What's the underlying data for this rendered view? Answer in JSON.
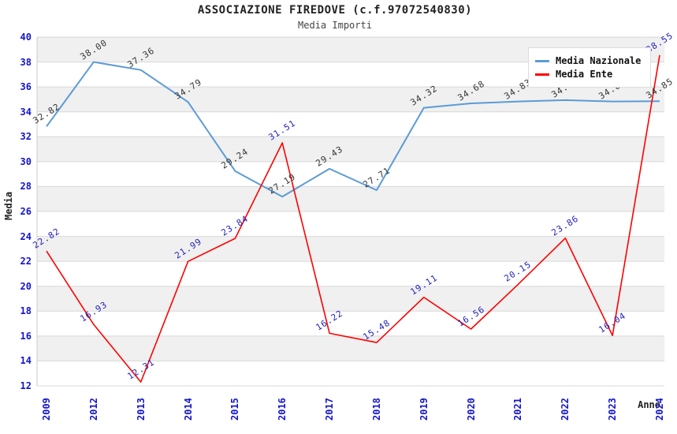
{
  "header": {
    "title": "ASSOCIAZIONE FIREDOVE (c.f.97072540830)",
    "subtitle": "Media Importi"
  },
  "chart_data": {
    "type": "line",
    "title": "ASSOCIAZIONE FIREDOVE (c.f.97072540830)",
    "subtitle": "Media Importi",
    "xlabel": "Anno",
    "ylabel": "Media",
    "categories": [
      "2009",
      "2012",
      "2013",
      "2014",
      "2015",
      "2016",
      "2017",
      "2018",
      "2019",
      "2020",
      "2021",
      "2022",
      "2023",
      "2024"
    ],
    "series": [
      {
        "name": "Media Nazionale",
        "color": "#5b9bd5",
        "label_color": "#333333",
        "line_width": 2,
        "values": [
          32.82,
          38.0,
          37.36,
          34.79,
          29.24,
          27.19,
          29.43,
          27.71,
          34.32,
          34.68,
          34.83,
          34.94,
          34.83,
          34.85
        ]
      },
      {
        "name": "Media Ente",
        "color": "#ff0000",
        "label_color": "#2222bb",
        "line_width": 1.6,
        "values": [
          22.82,
          16.93,
          12.31,
          21.99,
          23.84,
          31.51,
          16.22,
          15.48,
          19.11,
          16.56,
          20.15,
          23.86,
          16.04,
          38.55
        ]
      }
    ],
    "ylim": [
      12,
      40
    ],
    "ytick_step": 2,
    "yticks": [
      12,
      14,
      16,
      18,
      20,
      22,
      24,
      26,
      28,
      30,
      32,
      34,
      36,
      38,
      40
    ],
    "grid": true,
    "grid_color": "#d8d8d8",
    "band_colors": [
      "#f0f0f0",
      "#ffffff"
    ],
    "tick_label_color": "#1414cc",
    "legend_position": "top-right",
    "value_label_decimals": 2
  }
}
